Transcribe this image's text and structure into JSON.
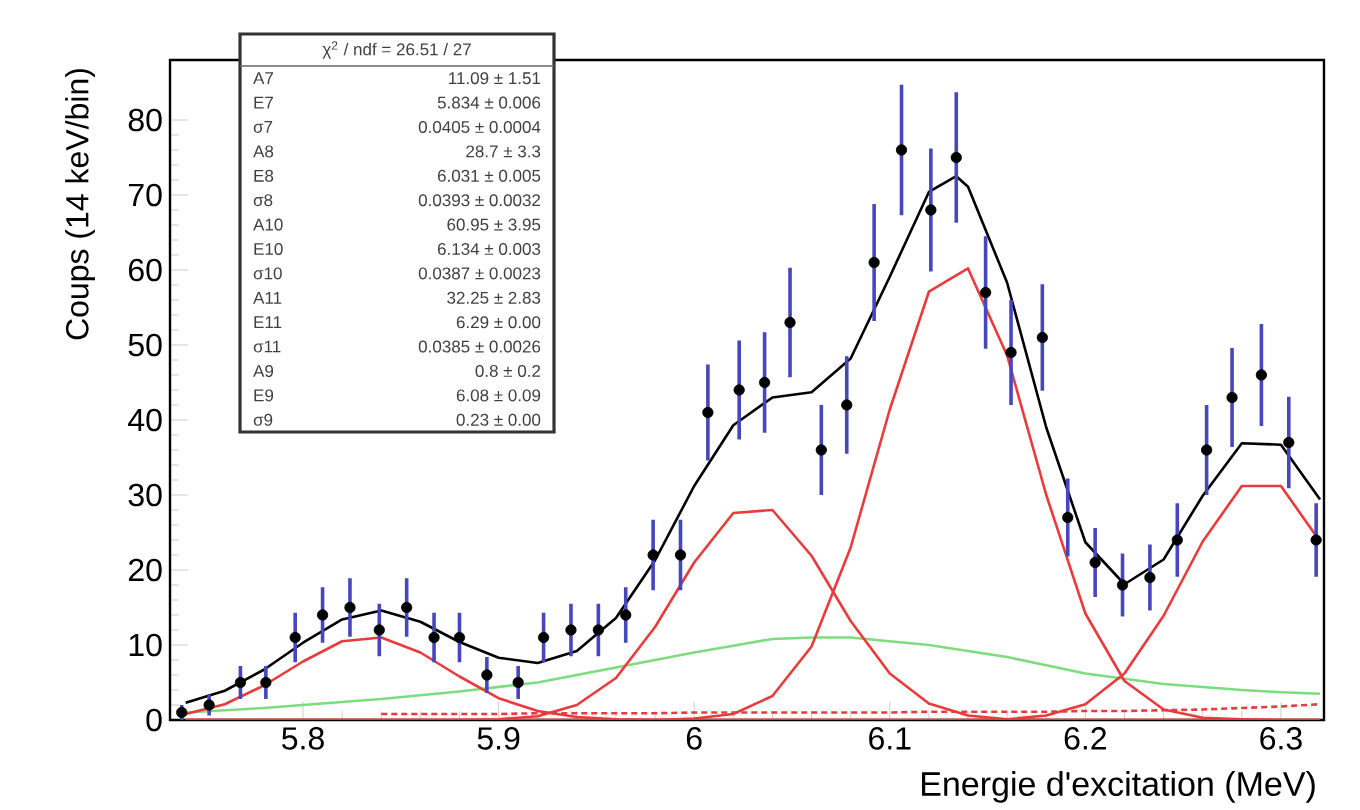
{
  "chart_data": {
    "type": "scatter",
    "xlabel": "Energie d'excitation (MeV)",
    "ylabel": "Coups (14 keV/bin)",
    "xlim": [
      5.732,
      6.322
    ],
    "xticks": [
      5.8,
      5.9,
      6,
      6.1,
      6.2,
      6.3
    ],
    "ylim": [
      0,
      88
    ],
    "yticks": [
      0,
      10,
      20,
      30,
      40,
      50,
      60,
      70,
      80
    ],
    "annotations": [
      "χ$^{2}$ / ndf = 26.51 / 27",
      "A7",
      "11.09 ± 1.51",
      "E7",
      "5.834 ± 0.006",
      "σ7",
      "0.0405 ± 0.0004",
      "A8",
      "28.7 ± 3.3",
      "E8",
      "6.031 ± 0.005",
      "σ8",
      "0.0393 ± 0.0032",
      "A10",
      "60.95 ± 3.95",
      "E10",
      "6.134 ± 0.003",
      "σ10",
      "0.0387 ± 0.0023",
      "A11",
      "32.25 ± 2.83",
      "E11",
      "6.29 ± 0.00",
      "σ11",
      "0.0385 ± 0.0026",
      "A9",
      "0.8 ± 0.2",
      "E9",
      "6.08 ± 0.09",
      "σ9",
      "0.23 ± 0.00"
    ],
    "series": [
      {
        "type": "line",
        "color": "#7ddc7d",
        "x": [
          5.74,
          5.76,
          5.78,
          5.8,
          5.82,
          5.84,
          5.86,
          5.88,
          5.9,
          5.92,
          5.94,
          5.96,
          5.98,
          6.0,
          6.02,
          6.04,
          6.06,
          6.08,
          6.1,
          6.12,
          6.14,
          6.16,
          6.18,
          6.2,
          6.22,
          6.24,
          6.26,
          6.28,
          6.3,
          6.32
        ],
        "values": [
          1.0,
          1.3,
          1.6,
          2.0,
          2.4,
          2.8,
          3.3,
          3.8,
          4.4,
          5.0,
          6.0,
          7.0,
          8.0,
          9.0,
          9.9,
          10.8,
          11.0,
          11.0,
          10.5,
          10.0,
          9.2,
          8.4,
          7.3,
          6.2,
          5.5,
          4.8,
          4.4,
          4.0,
          3.7,
          3.5
        ]
      },
      {
        "type": "line",
        "color": "#e83c3c",
        "line_style": "dashed",
        "x": [
          5.84,
          5.86,
          5.88,
          5.9,
          5.92,
          5.94,
          5.96,
          5.98,
          6.0,
          6.02,
          6.04,
          6.06,
          6.08,
          6.1,
          6.12,
          6.14,
          6.16,
          6.18,
          6.2,
          6.22,
          6.24,
          6.26,
          6.28,
          6.3,
          6.32
        ],
        "values": [
          0.8,
          0.8,
          0.8,
          0.8,
          0.9,
          0.9,
          0.9,
          0.9,
          1.0,
          1.0,
          1.0,
          1.0,
          1.0,
          1.0,
          1.1,
          1.1,
          1.1,
          1.1,
          1.2,
          1.2,
          1.3,
          1.4,
          1.6,
          1.8,
          2.1
        ]
      },
      {
        "type": "line",
        "color": "#e83c3c",
        "x": [
          5.74,
          5.76,
          5.78,
          5.8,
          5.82,
          5.84,
          5.86,
          5.88,
          5.9,
          5.92,
          5.94,
          5.96,
          5.98,
          6.0,
          6.02,
          6.04,
          6.06,
          6.08,
          6.1,
          6.12,
          6.14,
          6.16,
          6.18,
          6.2,
          6.22,
          6.24,
          6.26,
          6.28,
          6.3,
          6.32
        ],
        "values": [
          0.8,
          2.1,
          4.6,
          7.8,
          10.5,
          11.0,
          9.0,
          5.8,
          2.9,
          1.2,
          0.4,
          0.1,
          0,
          0,
          0,
          0,
          0,
          0,
          0,
          0,
          0,
          0,
          0,
          0,
          0,
          0,
          0,
          0,
          0,
          0
        ]
      },
      {
        "type": "line",
        "color": "#e83c3c",
        "x": [
          5.74,
          5.76,
          5.78,
          5.8,
          5.82,
          5.84,
          5.86,
          5.88,
          5.9,
          5.92,
          5.94,
          5.96,
          5.98,
          6.0,
          6.02,
          6.04,
          6.06,
          6.08,
          6.1,
          6.12,
          6.14,
          6.16,
          6.18,
          6.2,
          6.22,
          6.24,
          6.26,
          6.28,
          6.3,
          6.32
        ],
        "values": [
          0,
          0,
          0,
          0,
          0,
          0,
          0,
          0,
          0.1,
          0.5,
          2.0,
          5.6,
          12.4,
          21.0,
          27.6,
          28.0,
          21.9,
          13.2,
          6.2,
          2.2,
          0.6,
          0.1,
          0,
          0,
          0,
          0,
          0,
          0,
          0,
          0
        ]
      },
      {
        "type": "line",
        "color": "#e83c3c",
        "x": [
          5.74,
          5.76,
          5.78,
          5.8,
          5.82,
          5.84,
          5.86,
          5.88,
          5.9,
          5.92,
          5.94,
          5.96,
          5.98,
          6.0,
          6.02,
          6.04,
          6.06,
          6.08,
          6.1,
          6.12,
          6.14,
          6.16,
          6.18,
          6.2,
          6.22,
          6.24,
          6.26,
          6.28,
          6.3,
          6.32
        ],
        "values": [
          0,
          0,
          0,
          0,
          0,
          0,
          0,
          0,
          0,
          0,
          0,
          0,
          0,
          0.2,
          0.8,
          3.2,
          9.8,
          23.0,
          41.4,
          57.1,
          60.2,
          48.6,
          30.0,
          14.2,
          5.2,
          1.4,
          0.3,
          0.1,
          0,
          0
        ]
      },
      {
        "type": "line",
        "color": "#e83c3c",
        "x": [
          5.74,
          5.76,
          5.78,
          5.8,
          5.82,
          5.84,
          5.86,
          5.88,
          5.9,
          5.92,
          5.94,
          5.96,
          5.98,
          6.0,
          6.02,
          6.04,
          6.06,
          6.08,
          6.1,
          6.12,
          6.14,
          6.16,
          6.18,
          6.2,
          6.22,
          6.24,
          6.26,
          6.28,
          6.3,
          6.32
        ],
        "values": [
          0,
          0,
          0,
          0,
          0,
          0,
          0,
          0,
          0,
          0,
          0,
          0,
          0,
          0,
          0,
          0,
          0,
          0,
          0,
          0,
          0,
          0.1,
          0.6,
          2.1,
          6.2,
          13.9,
          23.8,
          31.2,
          31.2,
          23.8
        ]
      },
      {
        "type": "line",
        "color": "#000000",
        "x": [
          5.74,
          5.76,
          5.78,
          5.8,
          5.82,
          5.84,
          5.86,
          5.88,
          5.9,
          5.92,
          5.94,
          5.96,
          5.98,
          6.0,
          6.02,
          6.04,
          6.06,
          6.08,
          6.1,
          6.12,
          6.134,
          6.14,
          6.16,
          6.18,
          6.2,
          6.22,
          6.24,
          6.26,
          6.28,
          6.3,
          6.32
        ],
        "values": [
          2.3,
          3.9,
          6.7,
          10.3,
          13.4,
          14.6,
          13.1,
          10.4,
          8.3,
          7.6,
          9.2,
          13.6,
          21.3,
          31.2,
          39.3,
          43.0,
          43.7,
          48.2,
          59.1,
          70.4,
          72.5,
          71.1,
          58.3,
          39.0,
          23.7,
          18.1,
          21.4,
          29.9,
          36.9,
          36.7,
          29.4
        ]
      },
      {
        "color": "#000000",
        "marker": "circle",
        "x": [
          5.738,
          5.752,
          5.768,
          5.781,
          5.796,
          5.81,
          5.824,
          5.839,
          5.853,
          5.867,
          5.88,
          5.894,
          5.91,
          5.923,
          5.937,
          5.951,
          5.965,
          5.979,
          5.993,
          6.007,
          6.023,
          6.036,
          6.049,
          6.065,
          6.078,
          6.092,
          6.106,
          6.121,
          6.134,
          6.149,
          6.162,
          6.178,
          6.191,
          6.205,
          6.219,
          6.233,
          6.247,
          6.262,
          6.275,
          6.29,
          6.304,
          6.318
        ],
        "values": [
          1,
          2,
          5,
          5,
          11,
          14,
          15,
          12,
          15,
          11,
          11,
          6,
          5,
          11,
          12,
          12,
          14,
          22,
          22,
          41,
          44,
          45,
          53,
          36,
          42,
          61,
          76,
          68,
          75,
          57,
          49,
          51,
          27,
          21,
          18,
          19,
          24,
          36,
          43,
          46,
          37,
          24
        ],
        "errors": [
          1,
          1.4,
          2.2,
          2.2,
          3.3,
          3.7,
          3.9,
          3.5,
          3.9,
          3.3,
          3.3,
          2.4,
          2.2,
          3.3,
          3.5,
          3.5,
          3.7,
          4.7,
          4.7,
          6.4,
          6.6,
          6.7,
          7.3,
          6,
          6.5,
          7.8,
          8.7,
          8.2,
          8.7,
          7.5,
          7,
          7.1,
          5.2,
          4.6,
          4.2,
          4.4,
          4.9,
          6,
          6.6,
          6.8,
          6.1,
          4.9
        ]
      }
    ]
  }
}
